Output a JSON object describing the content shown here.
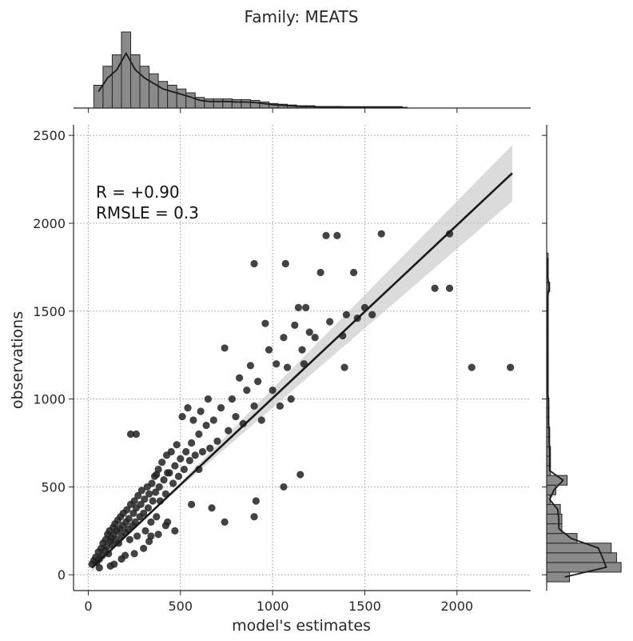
{
  "title": "Family: MEATS",
  "chart_data": {
    "type": "scatter",
    "title": "Family: MEATS",
    "xlabel": "model's estimates",
    "ylabel": "observations",
    "xlim": [
      -80,
      2400
    ],
    "ylim": [
      -90,
      2560
    ],
    "xticks": [
      "0",
      "500",
      "1000",
      "1500",
      "2000"
    ],
    "yticks": [
      "0",
      "500",
      "1000",
      "1500",
      "2000",
      "2500"
    ],
    "grid": true,
    "annotations": [
      "R = +0.90",
      "RMSLE =  0.3"
    ],
    "regression": {
      "x": [
        20,
        2300
      ],
      "y": [
        40,
        2285
      ],
      "ci_low_end": 2125,
      "ci_high_end": 2445
    },
    "points": [
      [
        20,
        60
      ],
      [
        30,
        80
      ],
      [
        40,
        100
      ],
      [
        45,
        70
      ],
      [
        55,
        130
      ],
      [
        60,
        90
      ],
      [
        70,
        150
      ],
      [
        75,
        110
      ],
      [
        80,
        180
      ],
      [
        90,
        140
      ],
      [
        95,
        200
      ],
      [
        100,
        160
      ],
      [
        105,
        230
      ],
      [
        110,
        120
      ],
      [
        115,
        250
      ],
      [
        120,
        190
      ],
      [
        125,
        210
      ],
      [
        130,
        170
      ],
      [
        135,
        270
      ],
      [
        140,
        230
      ],
      [
        145,
        290
      ],
      [
        150,
        200
      ],
      [
        155,
        250
      ],
      [
        160,
        310
      ],
      [
        165,
        180
      ],
      [
        170,
        260
      ],
      [
        175,
        330
      ],
      [
        180,
        220
      ],
      [
        185,
        280
      ],
      [
        190,
        350
      ],
      [
        200,
        240
      ],
      [
        205,
        300
      ],
      [
        210,
        370
      ],
      [
        215,
        260
      ],
      [
        220,
        320
      ],
      [
        225,
        200
      ],
      [
        230,
        400
      ],
      [
        240,
        280
      ],
      [
        245,
        350
      ],
      [
        250,
        420
      ],
      [
        255,
        300
      ],
      [
        260,
        380
      ],
      [
        265,
        220
      ],
      [
        270,
        450
      ],
      [
        280,
        330
      ],
      [
        285,
        400
      ],
      [
        290,
        480
      ],
      [
        300,
        350
      ],
      [
        305,
        430
      ],
      [
        310,
        250
      ],
      [
        320,
        500
      ],
      [
        325,
        380
      ],
      [
        330,
        460
      ],
      [
        340,
        300
      ],
      [
        345,
        520
      ],
      [
        350,
        420
      ],
      [
        360,
        560
      ],
      [
        365,
        470
      ],
      [
        370,
        330
      ],
      [
        380,
        600
      ],
      [
        385,
        500
      ],
      [
        390,
        420
      ],
      [
        400,
        640
      ],
      [
        410,
        540
      ],
      [
        420,
        460
      ],
      [
        425,
        680
      ],
      [
        430,
        300
      ],
      [
        440,
        580
      ],
      [
        450,
        700
      ],
      [
        460,
        520
      ],
      [
        470,
        620
      ],
      [
        480,
        740
      ],
      [
        490,
        560
      ],
      [
        500,
        660
      ],
      [
        510,
        900
      ],
      [
        520,
        600
      ],
      [
        530,
        700
      ],
      [
        540,
        950
      ],
      [
        550,
        650
      ],
      [
        560,
        750
      ],
      [
        570,
        880
      ],
      [
        580,
        680
      ],
      [
        600,
        800
      ],
      [
        610,
        930
      ],
      [
        620,
        700
      ],
      [
        640,
        850
      ],
      [
        650,
        1000
      ],
      [
        660,
        720
      ],
      [
        680,
        880
      ],
      [
        700,
        760
      ],
      [
        720,
        950
      ],
      [
        740,
        1290
      ],
      [
        760,
        820
      ],
      [
        780,
        1000
      ],
      [
        800,
        900
      ],
      [
        820,
        1120
      ],
      [
        840,
        860
      ],
      [
        860,
        1050
      ],
      [
        880,
        1190
      ],
      [
        900,
        960
      ],
      [
        920,
        1100
      ],
      [
        940,
        880
      ],
      [
        960,
        1430
      ],
      [
        980,
        1280
      ],
      [
        1000,
        1050
      ],
      [
        1020,
        1200
      ],
      [
        1040,
        960
      ],
      [
        1060,
        1350
      ],
      [
        1080,
        1180
      ],
      [
        1100,
        1000
      ],
      [
        1120,
        1420
      ],
      [
        1140,
        1520
      ],
      [
        1160,
        1280
      ],
      [
        1180,
        1520
      ],
      [
        1200,
        1380
      ],
      [
        1230,
        1350
      ],
      [
        1260,
        1720
      ],
      [
        1290,
        1930
      ],
      [
        1310,
        1440
      ],
      [
        1350,
        1930
      ],
      [
        1380,
        1360
      ],
      [
        1400,
        1480
      ],
      [
        1440,
        1720
      ],
      [
        1460,
        1460
      ],
      [
        1500,
        1520
      ],
      [
        1540,
        1480
      ],
      [
        1590,
        1940
      ],
      [
        1880,
        1630
      ],
      [
        1960,
        1940
      ],
      [
        1960,
        1630
      ],
      [
        2080,
        1180
      ],
      [
        2290,
        1180
      ],
      [
        900,
        1770
      ],
      [
        1070,
        1770
      ],
      [
        230,
        800
      ],
      [
        260,
        800
      ],
      [
        370,
        570
      ],
      [
        430,
        580
      ],
      [
        560,
        400
      ],
      [
        600,
        600
      ],
      [
        670,
        380
      ],
      [
        740,
        300
      ],
      [
        900,
        330
      ],
      [
        910,
        420
      ],
      [
        1060,
        500
      ],
      [
        1150,
        570
      ],
      [
        1390,
        1180
      ],
      [
        1170,
        1200
      ],
      [
        340,
        220
      ],
      [
        470,
        250
      ],
      [
        300,
        150
      ],
      [
        250,
        120
      ],
      [
        180,
        90
      ],
      [
        140,
        60
      ],
      [
        60,
        40
      ],
      [
        120,
        50
      ],
      [
        200,
        110
      ],
      [
        330,
        190
      ],
      [
        380,
        230
      ],
      [
        420,
        280
      ]
    ],
    "top_hist": [
      0.3,
      0.55,
      0.7,
      1.0,
      0.7,
      0.55,
      0.45,
      0.35,
      0.3,
      0.25,
      0.2,
      0.14,
      0.12,
      0.12,
      0.12,
      0.11,
      0.11,
      0.1,
      0.08,
      0.06,
      0.05,
      0.04,
      0.03,
      0.03,
      0.02,
      0.02,
      0.02,
      0.015,
      0.015,
      0.015,
      0.01,
      0.01,
      0.01,
      0.01
    ],
    "right_hist": [
      0.3,
      0.98,
      0.92,
      0.85,
      0.4,
      0.2,
      0.2,
      0.18,
      0.05,
      0.12,
      0.27,
      0.05,
      0.05,
      0.05,
      0.04,
      0.04,
      0.03,
      0.03,
      0.03,
      0.02,
      0.02,
      0.02,
      0.02,
      0.02,
      0.02,
      0.02,
      0.02,
      0.02,
      0.02,
      0.02,
      0.04,
      0.02,
      0.02,
      0.02
    ]
  }
}
